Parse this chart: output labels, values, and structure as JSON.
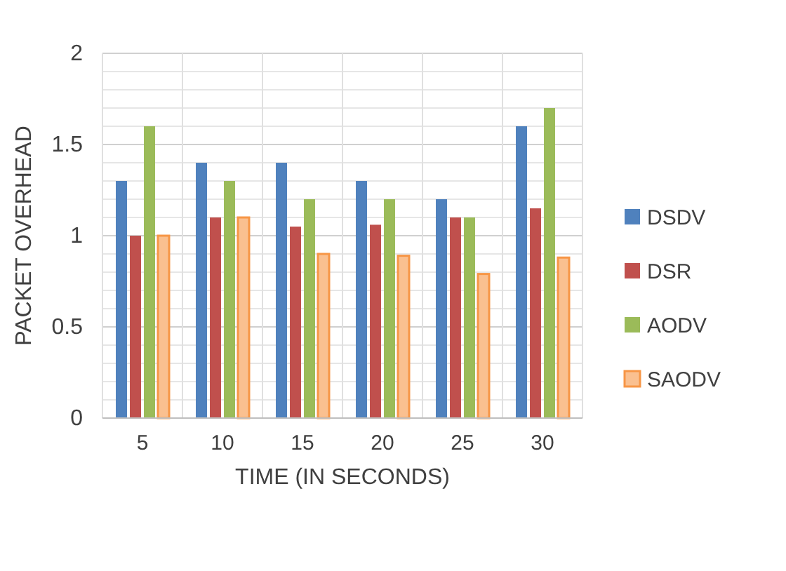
{
  "chart_data": {
    "type": "bar",
    "categories": [
      "5",
      "10",
      "15",
      "20",
      "25",
      "30"
    ],
    "series": [
      {
        "name": "DSDV",
        "color": "#4f81bd",
        "values": [
          1.3,
          1.4,
          1.4,
          1.3,
          1.2,
          1.6
        ]
      },
      {
        "name": "DSR",
        "color": "#c0504d",
        "values": [
          1.0,
          1.1,
          1.05,
          1.06,
          1.1,
          1.15
        ]
      },
      {
        "name": "AODV",
        "color": "#9bbb59",
        "values": [
          1.6,
          1.3,
          1.2,
          1.2,
          1.1,
          1.7
        ]
      },
      {
        "name": "SAODV",
        "color": "#f79646",
        "values": [
          1.0,
          1.1,
          0.9,
          0.89,
          0.79,
          0.88
        ]
      }
    ],
    "xlabel": "TIME (IN SECONDS)",
    "ylabel": "PACKET OVERHEAD",
    "ylim": [
      0,
      2
    ],
    "yticks": [
      0,
      {
        "value": 0.1,
        "label": null
      },
      {
        "value": 0.2,
        "label": null
      },
      {
        "value": 0.3,
        "label": null
      },
      {
        "value": 0.4,
        "label": null
      },
      0.5,
      {
        "value": 0.6,
        "label": null
      },
      {
        "value": 0.7,
        "label": null
      },
      {
        "value": 0.8,
        "label": null
      },
      {
        "value": 0.9,
        "label": null
      },
      1,
      {
        "value": 1.1,
        "label": null
      },
      {
        "value": 1.2,
        "label": null
      },
      {
        "value": 1.3,
        "label": null
      },
      {
        "value": 1.4,
        "label": null
      },
      1.5,
      {
        "value": 1.6,
        "label": null
      },
      {
        "value": 1.7,
        "label": null
      },
      {
        "value": 1.8,
        "label": null
      },
      {
        "value": 1.9,
        "label": null
      },
      2
    ],
    "grid": true,
    "legend": "right"
  }
}
